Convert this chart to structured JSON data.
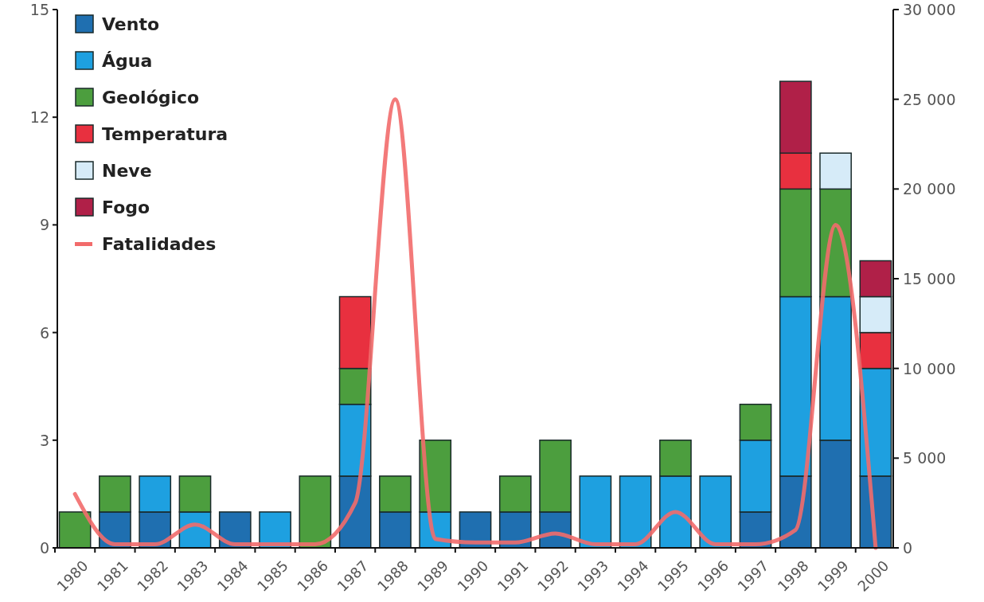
{
  "chart_data": {
    "type": "bar",
    "stacked": true,
    "legend": "top left",
    "categories": [
      "1980",
      "1981",
      "1982",
      "1983",
      "1984",
      "1985",
      "1986",
      "1987",
      "1988",
      "1989",
      "1990",
      "1991",
      "1992",
      "1993",
      "1994",
      "1995",
      "1996",
      "1997",
      "1998",
      "1999",
      "2000"
    ],
    "series": [
      {
        "name": "Vento",
        "color": "#1f6fb0",
        "values": [
          0,
          1,
          1,
          0,
          1,
          0,
          0,
          2,
          1,
          0,
          1,
          1,
          1,
          0,
          0,
          0,
          0,
          1,
          2,
          3,
          2
        ]
      },
      {
        "name": "Água",
        "color": "#1ea0e0",
        "values": [
          0,
          0,
          1,
          1,
          0,
          1,
          0,
          2,
          0,
          1,
          0,
          0,
          0,
          2,
          2,
          2,
          2,
          2,
          5,
          4,
          3
        ]
      },
      {
        "name": "Geológico",
        "color": "#4c9e3e",
        "values": [
          1,
          1,
          0,
          1,
          0,
          0,
          2,
          1,
          1,
          2,
          0,
          1,
          2,
          0,
          0,
          1,
          0,
          1,
          3,
          3,
          0
        ]
      },
      {
        "name": "Temperatura",
        "color": "#e8303f",
        "values": [
          0,
          0,
          0,
          0,
          0,
          0,
          0,
          2,
          0,
          0,
          0,
          0,
          0,
          0,
          0,
          0,
          0,
          0,
          1,
          0,
          1
        ]
      },
      {
        "name": "Neve",
        "color": "#d6ebf8",
        "values": [
          0,
          0,
          0,
          0,
          0,
          0,
          0,
          0,
          0,
          0,
          0,
          0,
          0,
          0,
          0,
          0,
          0,
          0,
          0,
          1,
          1
        ]
      },
      {
        "name": "Fogo",
        "color": "#b02048",
        "values": [
          0,
          0,
          0,
          0,
          0,
          0,
          0,
          0,
          0,
          0,
          0,
          0,
          0,
          0,
          0,
          0,
          0,
          0,
          2,
          0,
          1
        ]
      },
      {
        "name": "Fatalidades",
        "type": "line",
        "axis": "y2",
        "color": "#f26b6b",
        "values": [
          3000,
          200,
          200,
          1300,
          200,
          200,
          200,
          2500,
          25000,
          500,
          300,
          300,
          800,
          200,
          200,
          2000,
          200,
          200,
          1000,
          18000,
          0
        ]
      }
    ],
    "ylim": [
      0,
      15
    ],
    "yticks": [
      0,
      3,
      6,
      9,
      12,
      15
    ],
    "y2lim": [
      0,
      30000
    ],
    "y2ticks": [
      0,
      {
        "value": 5000,
        "label": "5 000"
      },
      {
        "value": 10000,
        "label": "10 000"
      },
      {
        "value": 15000,
        "label": "15 000"
      },
      {
        "value": 20000,
        "label": "20 000"
      },
      {
        "value": 25000,
        "label": "25 000"
      },
      {
        "value": 30000,
        "label": "30 000"
      }
    ]
  }
}
